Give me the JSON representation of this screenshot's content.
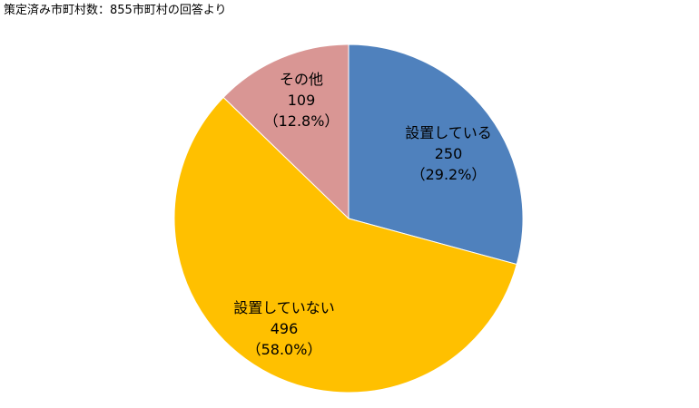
{
  "note": "策定済み市町村数：855市町村の回答より",
  "chart_data": {
    "type": "pie",
    "title": "",
    "slices": [
      {
        "name": "設置している",
        "value": 250,
        "percent_label": "（29.2%）",
        "color": "#4f81bd"
      },
      {
        "name": "設置していない",
        "value": 496,
        "percent_label": "（58.0%）",
        "color": "#ffc000"
      },
      {
        "name": "その他",
        "value": 109,
        "percent_label": "（12.8%）",
        "color": "#d99694"
      }
    ],
    "start": "12 o'clock",
    "direction": "clockwise",
    "legend": "none"
  }
}
